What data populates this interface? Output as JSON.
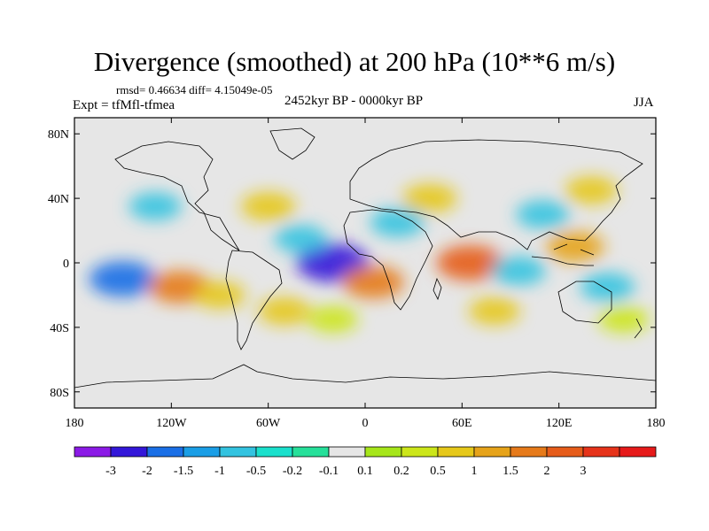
{
  "title": "Divergence (smoothed) at 200 hPa (10**6 m/s)",
  "stats": "rmsd= 0.46634 diff= 4.15049e-05",
  "experiment": "Expt = tfMfl-tfmea",
  "period": "2452kyr BP - 0000kyr BP",
  "season": "JJA",
  "map": {
    "lon_ticks": [
      "180",
      "120W",
      "60W",
      "0",
      "60E",
      "120E",
      "180"
    ],
    "lat_ticks": [
      "80N",
      "40N",
      "0",
      "40S",
      "80S"
    ],
    "lon_values": [
      -180,
      -120,
      -60,
      0,
      60,
      120,
      180
    ],
    "lat_values": [
      80,
      40,
      0,
      -40,
      -80
    ],
    "lat_range": [
      -90,
      90
    ]
  },
  "colorbar": {
    "colors": [
      "#8b1ae6",
      "#3317d9",
      "#1a6fe6",
      "#1a9ee6",
      "#33c3e0",
      "#1ae0cc",
      "#26e09a",
      "#e6e6e6",
      "#a6e61a",
      "#cce61a",
      "#e6c81a",
      "#e6a31a",
      "#e67a1a",
      "#e65c1a",
      "#e6331a",
      "#e61a1a"
    ],
    "labels": [
      "-3",
      "-2",
      "-1.5",
      "-1",
      "-0.5",
      "-0.2",
      "-0.1",
      "0.1",
      "0.2",
      "0.5",
      "1",
      "1.5",
      "2",
      "3"
    ]
  },
  "anomalies": [
    {
      "lon": -150,
      "lat": -10,
      "value": -2.0
    },
    {
      "lon": -115,
      "lat": -15,
      "value": 1.5
    },
    {
      "lon": -90,
      "lat": -20,
      "value": 0.5
    },
    {
      "lon": -20,
      "lat": 0,
      "value": -2.5
    },
    {
      "lon": 5,
      "lat": -12,
      "value": 1.5
    },
    {
      "lon": 65,
      "lat": 0,
      "value": 2.0
    },
    {
      "lon": 95,
      "lat": -5,
      "value": -0.8
    },
    {
      "lon": 130,
      "lat": 10,
      "value": 1.2
    },
    {
      "lon": 150,
      "lat": -15,
      "value": -0.8
    },
    {
      "lon": -130,
      "lat": 35,
      "value": -0.6
    },
    {
      "lon": -60,
      "lat": 35,
      "value": 0.8
    },
    {
      "lon": -40,
      "lat": 15,
      "value": -0.6
    },
    {
      "lon": 20,
      "lat": 25,
      "value": -0.8
    },
    {
      "lon": 40,
      "lat": 40,
      "value": 0.8
    },
    {
      "lon": 110,
      "lat": 30,
      "value": -0.7
    },
    {
      "lon": 140,
      "lat": 45,
      "value": 0.6
    },
    {
      "lon": -50,
      "lat": -30,
      "value": 0.6
    },
    {
      "lon": 80,
      "lat": -30,
      "value": 0.5
    },
    {
      "lon": -20,
      "lat": -35,
      "value": 0.4
    },
    {
      "lon": 160,
      "lat": -35,
      "value": 0.4
    }
  ]
}
